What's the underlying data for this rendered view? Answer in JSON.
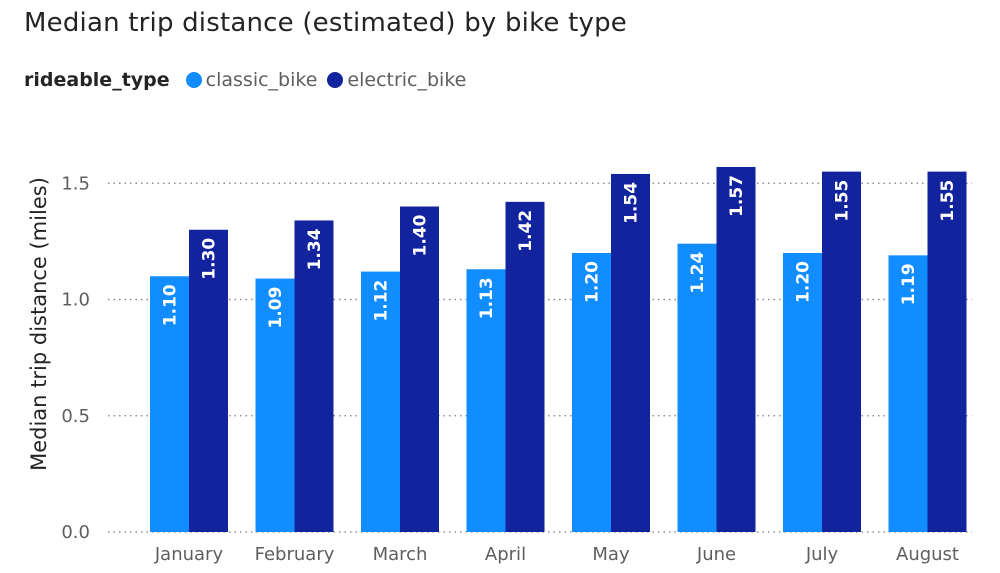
{
  "title": "Median trip distance (estimated) by bike type",
  "legend": {
    "title": "rideable_type",
    "items": [
      {
        "label": "classic_bike",
        "color": "#118dff"
      },
      {
        "label": "electric_bike",
        "color": "#12239e"
      }
    ]
  },
  "chart_data": {
    "type": "bar",
    "title": "Median trip distance (estimated) by bike type",
    "xlabel": "",
    "ylabel": "Median trip distance (miles)",
    "ylim": [
      0,
      1.6
    ],
    "yticks": [
      "0.0",
      "0.5",
      "1.0",
      "1.5"
    ],
    "yticks_values": [
      0,
      0.5,
      1.0,
      1.5
    ],
    "grid": true,
    "legend_position": "top-left",
    "categories": [
      "January",
      "February",
      "March",
      "April",
      "May",
      "June",
      "July",
      "August"
    ],
    "series": [
      {
        "name": "classic_bike",
        "color": "#118dff",
        "values": [
          1.1,
          1.09,
          1.12,
          1.13,
          1.2,
          1.24,
          1.2,
          1.19
        ],
        "labels": [
          "1.10",
          "1.09",
          "1.12",
          "1.13",
          "1.20",
          "1.24",
          "1.20",
          "1.19"
        ]
      },
      {
        "name": "electric_bike",
        "color": "#12239e",
        "values": [
          1.3,
          1.34,
          1.4,
          1.42,
          1.54,
          1.57,
          1.55,
          1.55
        ],
        "labels": [
          "1.30",
          "1.34",
          "1.40",
          "1.42",
          "1.54",
          "1.57",
          "1.55",
          "1.55"
        ]
      }
    ]
  }
}
